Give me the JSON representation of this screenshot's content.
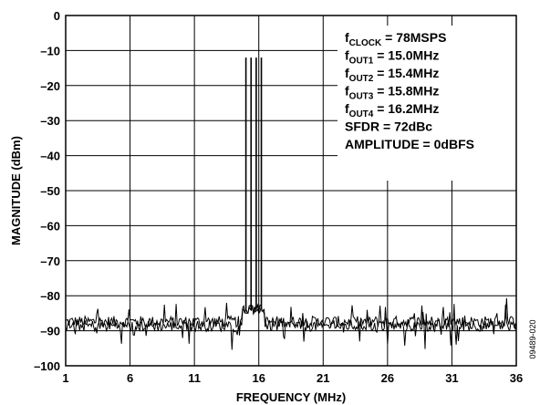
{
  "chart_data": {
    "type": "line",
    "xlabel": "FREQUENCY (MHz)",
    "ylabel": "MAGNITUDE (dBm)",
    "xlim": [
      1,
      36
    ],
    "ylim": [
      -100,
      0
    ],
    "x_ticks": [
      "1",
      "6",
      "11",
      "16",
      "21",
      "26",
      "31",
      "36"
    ],
    "y_ticks": [
      "0",
      "–10",
      "–20",
      "–30",
      "–40",
      "–50",
      "–60",
      "–70",
      "–80",
      "–90",
      "–100"
    ],
    "grid": true,
    "noise_floor_dbm": -88,
    "tones": [
      {
        "x": 15.0,
        "y": -12
      },
      {
        "x": 15.4,
        "y": -12
      },
      {
        "x": 15.8,
        "y": -12
      },
      {
        "x": 16.2,
        "y": -12
      }
    ],
    "annotations": [
      {
        "main": "f",
        "sub": "CLOCK",
        "rest": " = 78MSPS"
      },
      {
        "main": "f",
        "sub": "OUT1",
        "rest": " = 15.0MHz"
      },
      {
        "main": "f",
        "sub": "OUT2",
        "rest": " = 15.4MHz"
      },
      {
        "main": "f",
        "sub": "OUT3",
        "rest": " = 15.8MHz"
      },
      {
        "main": "f",
        "sub": "OUT4",
        "rest": " = 16.2MHz"
      },
      {
        "main": "SFDR = 72dBc",
        "sub": "",
        "rest": ""
      },
      {
        "main": "AMPLITUDE = 0dBFS",
        "sub": "",
        "rest": ""
      }
    ],
    "figure_code": "09489-020"
  }
}
